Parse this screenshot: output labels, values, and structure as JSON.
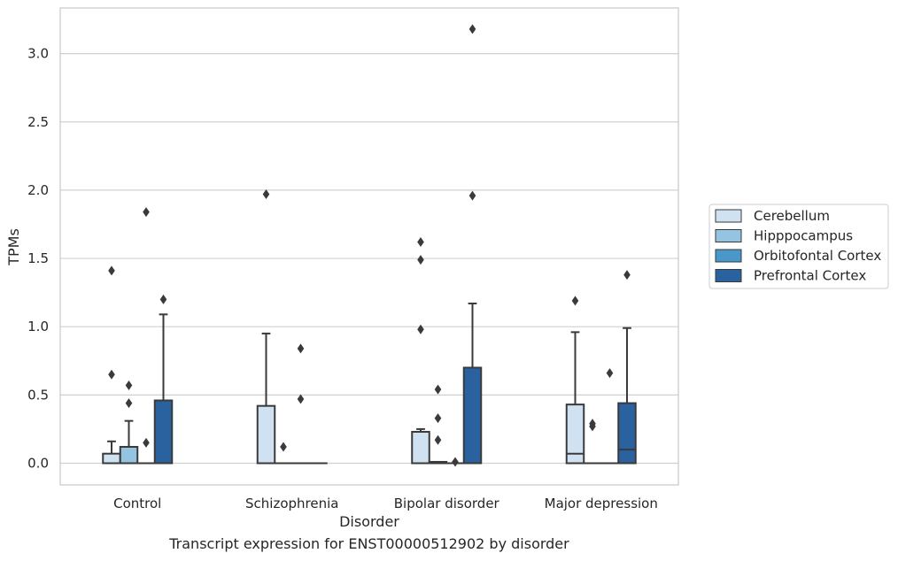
{
  "caption": "Transcript expression for ENST00000512902 by disorder",
  "chart_data": {
    "type": "box",
    "title": "",
    "xlabel": "Disorder",
    "ylabel": "TPMs",
    "categories": [
      "Control",
      "Schizophrenia",
      "Bipolar disorder",
      "Major depression"
    ],
    "ylim": [
      -0.16,
      3.33
    ],
    "yticks": [
      "0.0",
      "0.5",
      "1.0",
      "1.5",
      "2.0",
      "2.5",
      "3.0"
    ],
    "grid": "horizontal",
    "legend_position": "right",
    "series": [
      {
        "name": "Cerebellum",
        "color": "#d0e1f2",
        "boxes": [
          {
            "q1": 0.0,
            "median": 0.0,
            "q3": 0.07,
            "whisker_low": 0.0,
            "whisker_high": 0.16,
            "outliers": [
              1.41,
              0.65
            ]
          },
          {
            "q1": 0.0,
            "median": 0.0,
            "q3": 0.42,
            "whisker_low": 0.0,
            "whisker_high": 0.95,
            "outliers": [
              1.97
            ]
          },
          {
            "q1": 0.0,
            "median": 0.0,
            "q3": 0.23,
            "whisker_low": 0.0,
            "whisker_high": 0.25,
            "outliers": [
              1.62,
              1.49,
              0.98
            ]
          },
          {
            "q1": 0.0,
            "median": 0.07,
            "q3": 0.43,
            "whisker_low": 0.0,
            "whisker_high": 0.96,
            "outliers": [
              1.19
            ]
          }
        ]
      },
      {
        "name": "Hipppocampus",
        "color": "#94c4df",
        "boxes": [
          {
            "q1": 0.0,
            "median": 0.0,
            "q3": 0.12,
            "whisker_low": 0.0,
            "whisker_high": 0.31,
            "outliers": [
              0.57,
              0.44
            ]
          },
          {
            "q1": 0.0,
            "median": 0.0,
            "q3": 0.0,
            "whisker_low": 0.0,
            "whisker_high": 0.0,
            "outliers": [
              0.12
            ]
          },
          {
            "q1": 0.0,
            "median": 0.0,
            "q3": 0.01,
            "whisker_low": 0.0,
            "whisker_high": 0.01,
            "outliers": [
              0.54,
              0.33,
              0.17
            ]
          },
          {
            "q1": 0.0,
            "median": 0.0,
            "q3": 0.0,
            "whisker_low": 0.0,
            "whisker_high": 0.0,
            "outliers": [
              0.29,
              0.27
            ]
          }
        ]
      },
      {
        "name": "Orbitofontal Cortex",
        "color": "#4a98c9",
        "boxes": [
          {
            "q1": 0.0,
            "median": 0.0,
            "q3": 0.0,
            "whisker_low": 0.0,
            "whisker_high": 0.0,
            "outliers": [
              1.84,
              0.15
            ]
          },
          {
            "q1": 0.0,
            "median": 0.0,
            "q3": 0.0,
            "whisker_low": 0.0,
            "whisker_high": 0.0,
            "outliers": [
              0.84,
              0.47
            ]
          },
          {
            "q1": 0.0,
            "median": 0.0,
            "q3": 0.0,
            "whisker_low": 0.0,
            "whisker_high": 0.0,
            "outliers": [
              0.01
            ]
          },
          {
            "q1": 0.0,
            "median": 0.0,
            "q3": 0.0,
            "whisker_low": 0.0,
            "whisker_high": 0.0,
            "outliers": [
              0.66
            ]
          }
        ]
      },
      {
        "name": "Prefrontal Cortex",
        "color": "#2a62a0",
        "boxes": [
          {
            "q1": 0.0,
            "median": 0.0,
            "q3": 0.46,
            "whisker_low": 0.0,
            "whisker_high": 1.09,
            "outliers": [
              1.2
            ]
          },
          {
            "q1": 0.0,
            "median": 0.0,
            "q3": 0.0,
            "whisker_low": 0.0,
            "whisker_high": 0.0,
            "outliers": []
          },
          {
            "q1": 0.0,
            "median": 0.0,
            "q3": 0.7,
            "whisker_low": 0.0,
            "whisker_high": 1.17,
            "outliers": [
              3.18,
              1.96
            ]
          },
          {
            "q1": 0.0,
            "median": 0.1,
            "q3": 0.44,
            "whisker_low": 0.0,
            "whisker_high": 0.99,
            "outliers": [
              1.38
            ]
          }
        ]
      }
    ]
  }
}
